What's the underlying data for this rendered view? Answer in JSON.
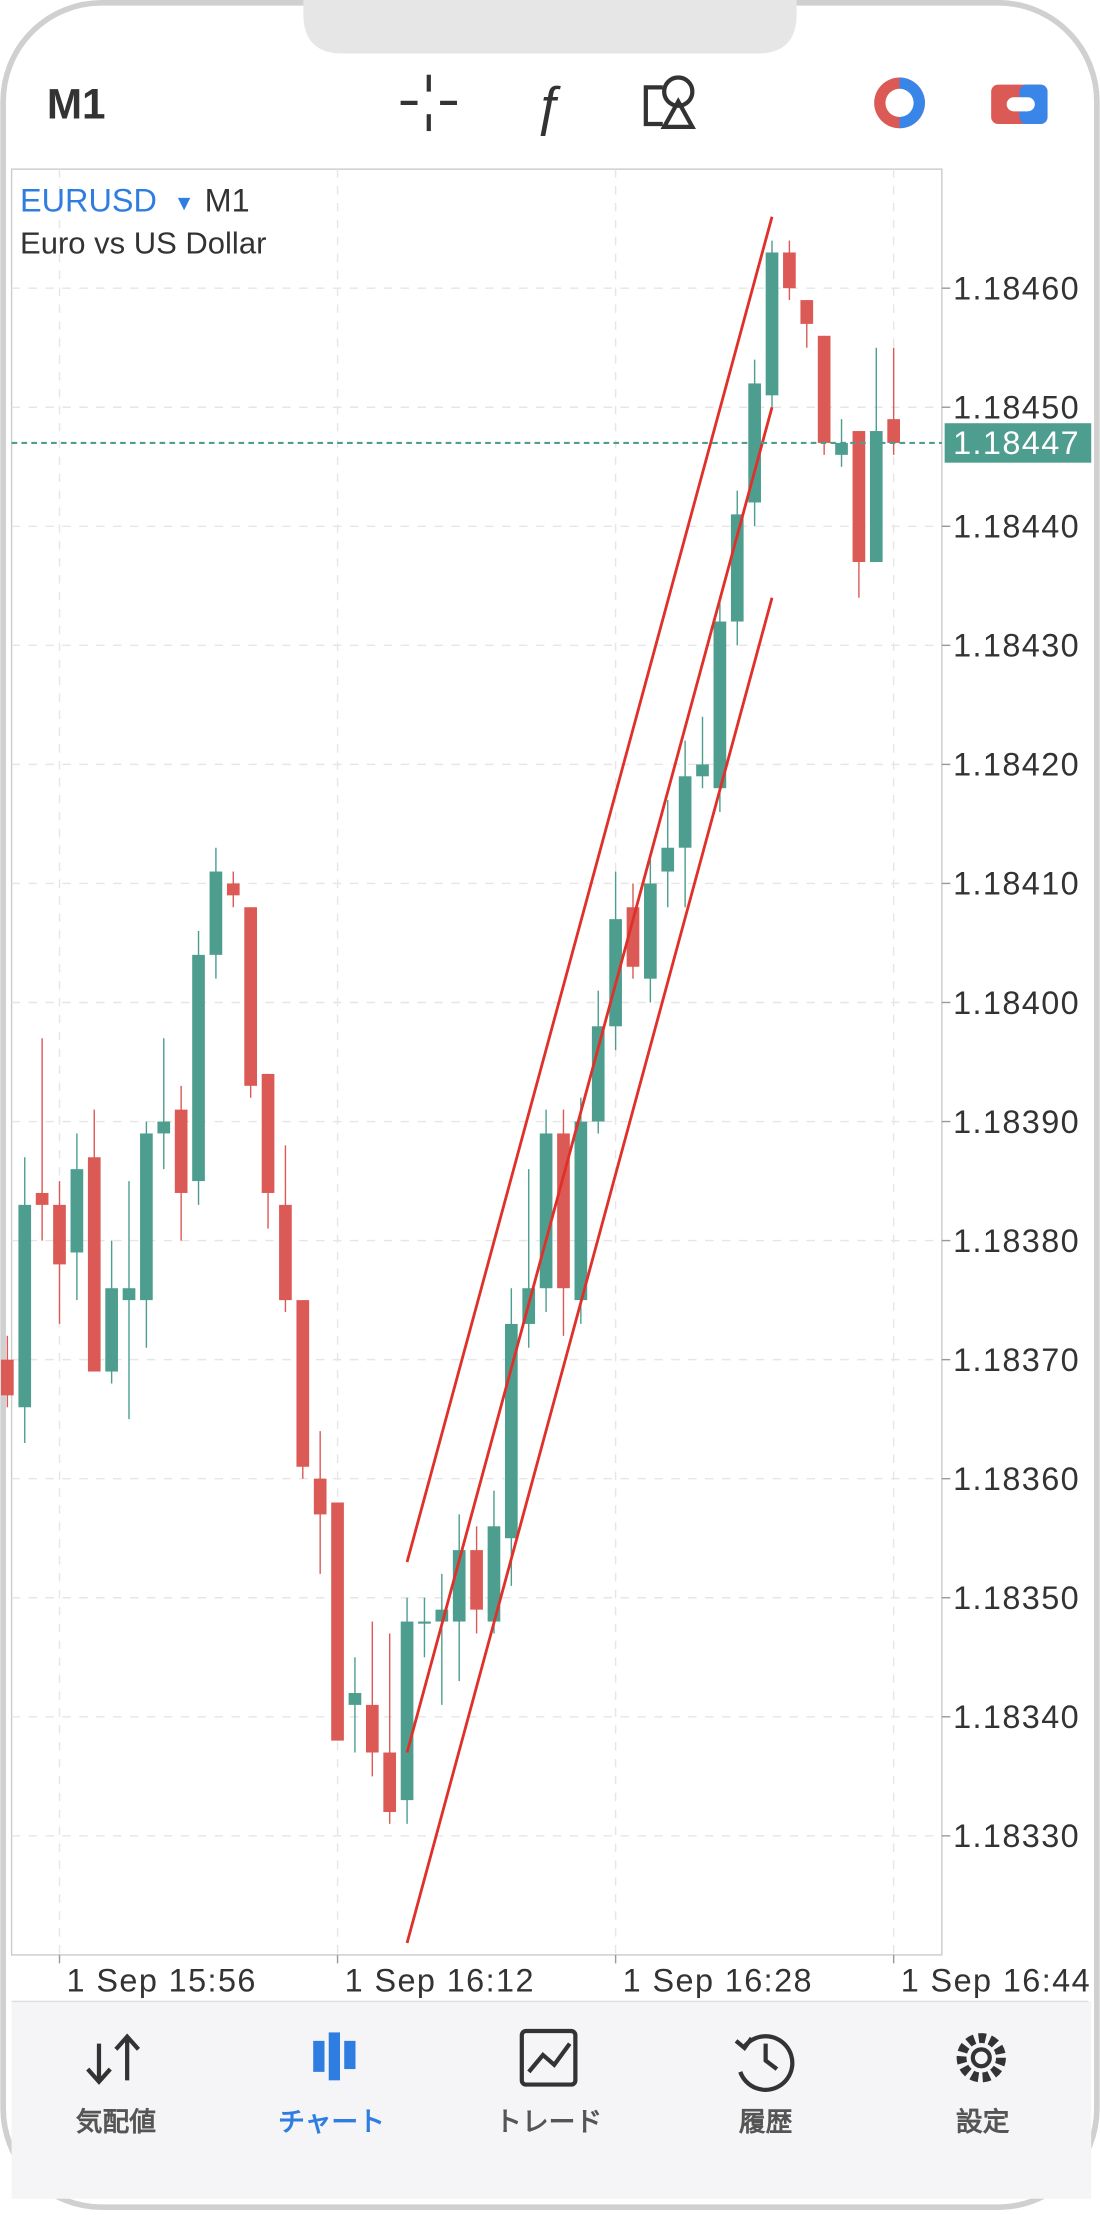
{
  "header": {
    "timeframe": "M1"
  },
  "chart_data": {
    "type": "candlestick",
    "symbol": "EURUSD",
    "timeframe": "M1",
    "description": "Euro vs US Dollar",
    "categories": [
      null,
      null,
      null,
      "1 Sep 15:56",
      null,
      null,
      null,
      null,
      null,
      null,
      null,
      null,
      null,
      null,
      null,
      null,
      null,
      null,
      null,
      "1 Sep 16:12",
      null,
      null,
      null,
      null,
      null,
      null,
      null,
      null,
      null,
      null,
      null,
      null,
      null,
      null,
      null,
      "1 Sep 16:28",
      null,
      null,
      null,
      null,
      null,
      null,
      null,
      null,
      null,
      null,
      null,
      null,
      null,
      null,
      null,
      "1 Sep 16:44"
    ],
    "open": [
      1.1837,
      1.18366,
      1.18384,
      1.18383,
      1.18379,
      1.18387,
      1.18369,
      1.18375,
      1.18375,
      1.18389,
      1.18391,
      1.18385,
      1.18404,
      1.1841,
      1.18408,
      1.18394,
      1.18383,
      1.18375,
      1.1836,
      1.18358,
      1.18341,
      1.18341,
      1.18337,
      1.18333,
      1.18348,
      1.18348,
      1.18348,
      1.18354,
      1.18348,
      1.18355,
      1.18373,
      1.18376,
      1.18389,
      1.18375,
      1.1839,
      1.18398,
      1.18408,
      1.18402,
      1.18411,
      1.18413,
      1.18419,
      1.18418,
      1.18432,
      1.18442,
      1.18451,
      1.18463,
      1.18459,
      1.18456,
      1.18446,
      1.18448,
      1.18437,
      1.18449
    ],
    "high": [
      1.18372,
      1.18387,
      1.18397,
      1.18385,
      1.18389,
      1.18391,
      1.1838,
      1.18385,
      1.1839,
      1.18397,
      1.18393,
      1.18406,
      1.18413,
      1.18411,
      1.18408,
      1.18394,
      1.18388,
      1.18375,
      1.18364,
      1.18358,
      1.18345,
      1.18348,
      1.18347,
      1.1835,
      1.1835,
      1.18352,
      1.18357,
      1.18356,
      1.18359,
      1.18376,
      1.18386,
      1.18391,
      1.18391,
      1.18392,
      1.18401,
      1.18411,
      1.1841,
      1.18412,
      1.18417,
      1.18422,
      1.18424,
      1.18434,
      1.18443,
      1.18454,
      1.18464,
      1.18464,
      1.18459,
      1.18456,
      1.18449,
      1.18448,
      1.18455,
      1.18455
    ],
    "low": [
      1.18366,
      1.18363,
      1.1838,
      1.18373,
      1.18375,
      1.18369,
      1.18368,
      1.18365,
      1.18371,
      1.18386,
      1.1838,
      1.18383,
      1.18402,
      1.18408,
      1.18392,
      1.18381,
      1.18374,
      1.1836,
      1.18352,
      1.18338,
      1.18337,
      1.18335,
      1.18331,
      1.18331,
      1.18345,
      1.18341,
      1.18343,
      1.18347,
      1.18347,
      1.18351,
      1.18371,
      1.18374,
      1.18372,
      1.18373,
      1.18389,
      1.18396,
      1.18402,
      1.184,
      1.18408,
      1.18408,
      1.18418,
      1.18416,
      1.1843,
      1.1844,
      1.1845,
      1.18459,
      1.18455,
      1.18446,
      1.18445,
      1.18434,
      1.18437,
      1.18446
    ],
    "close": [
      1.18367,
      1.18383,
      1.18383,
      1.18378,
      1.18386,
      1.18369,
      1.18376,
      1.18376,
      1.18389,
      1.1839,
      1.18384,
      1.18404,
      1.18411,
      1.18409,
      1.18393,
      1.18384,
      1.18375,
      1.18361,
      1.18357,
      1.18338,
      1.18342,
      1.18337,
      1.18332,
      1.18348,
      1.18348,
      1.18349,
      1.18354,
      1.18349,
      1.18356,
      1.18373,
      1.18376,
      1.18389,
      1.18376,
      1.1839,
      1.18398,
      1.18407,
      1.18403,
      1.1841,
      1.18413,
      1.18419,
      1.1842,
      1.18432,
      1.18441,
      1.18452,
      1.18463,
      1.1846,
      1.18457,
      1.18447,
      1.18447,
      1.18437,
      1.18448,
      1.18447
    ],
    "up_color": "#4e9e90",
    "down_color": "#dc5a55",
    "ylim": [
      1.1832,
      1.1847
    ],
    "yticks": [
      {
        "value": 1.1846,
        "label": "1.18460"
      },
      {
        "value": 1.1845,
        "label": "1.18450"
      },
      {
        "value": 1.1844,
        "label": "1.18440"
      },
      {
        "value": 1.1843,
        "label": "1.18430"
      },
      {
        "value": 1.1842,
        "label": "1.18420"
      },
      {
        "value": 1.1841,
        "label": "1.18410"
      },
      {
        "value": 1.184,
        "label": "1.18400"
      },
      {
        "value": 1.1839,
        "label": "1.18390"
      },
      {
        "value": 1.1838,
        "label": "1.18380"
      },
      {
        "value": 1.1837,
        "label": "1.18370"
      },
      {
        "value": 1.1836,
        "label": "1.18360"
      },
      {
        "value": 1.1835,
        "label": "1.18350"
      },
      {
        "value": 1.1834,
        "label": "1.18340"
      },
      {
        "value": 1.1833,
        "label": "1.18330"
      }
    ],
    "last_price": 1.18447,
    "grid": true,
    "lines": [
      {
        "color": "#e0302a",
        "x": [
          23,
          44
        ],
        "y": [
          1.18353,
          1.18466
        ]
      },
      {
        "color": "#e0302a",
        "x": [
          23,
          44
        ],
        "y": [
          1.18337,
          1.1845
        ]
      },
      {
        "color": "#e0302a",
        "x": [
          23,
          44
        ],
        "y": [
          1.18321,
          1.18434
        ]
      }
    ]
  },
  "nav": {
    "tabs": [
      "気配値",
      "チャート",
      "トレード",
      "履歴",
      "設定"
    ],
    "active_tab": 1
  }
}
